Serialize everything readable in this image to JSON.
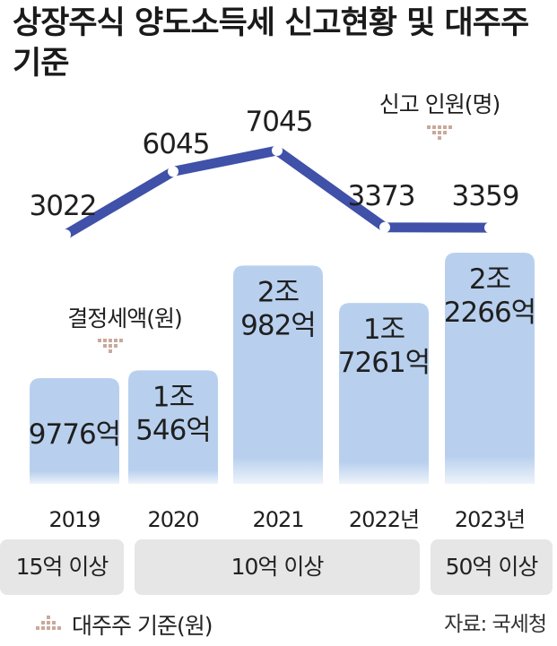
{
  "title": "상장주식 양도소득세 신고현황 및 대주주 기준",
  "source": "자료: 국세청",
  "legend_threshold": "대주주 기준(원)",
  "colors": {
    "bar": "#b8d0ee",
    "line": "#3f51a8",
    "band": "#e6e6e6",
    "marker": "#c9a99a"
  },
  "chart_data": [
    {
      "type": "bar",
      "label": "결정세액(원)",
      "categories": [
        "2019",
        "2020",
        "2021",
        "2022년",
        "2023년"
      ],
      "values": [
        9776,
        10546,
        20982,
        17261,
        22266
      ],
      "unit": "억원",
      "data_labels": [
        [
          "9776억"
        ],
        [
          "1조",
          "546억"
        ],
        [
          "2조",
          "982억"
        ],
        [
          "1조",
          "7261억"
        ],
        [
          "2조",
          "2266억"
        ]
      ]
    },
    {
      "type": "line",
      "label": "신고 인원(명)",
      "categories": [
        "2019",
        "2020",
        "2021",
        "2022년",
        "2023년"
      ],
      "values": [
        3022,
        6045,
        7045,
        3373,
        3359
      ],
      "data_labels": [
        "3022",
        "6045",
        "7045",
        "3373",
        "3359"
      ]
    }
  ],
  "thresholds": [
    {
      "label": "15억 이상",
      "years": [
        "2019"
      ]
    },
    {
      "label": "10억 이상",
      "years": [
        "2020",
        "2021",
        "2022년"
      ]
    },
    {
      "label": "50억 이상",
      "years": [
        "2023년"
      ]
    }
  ]
}
